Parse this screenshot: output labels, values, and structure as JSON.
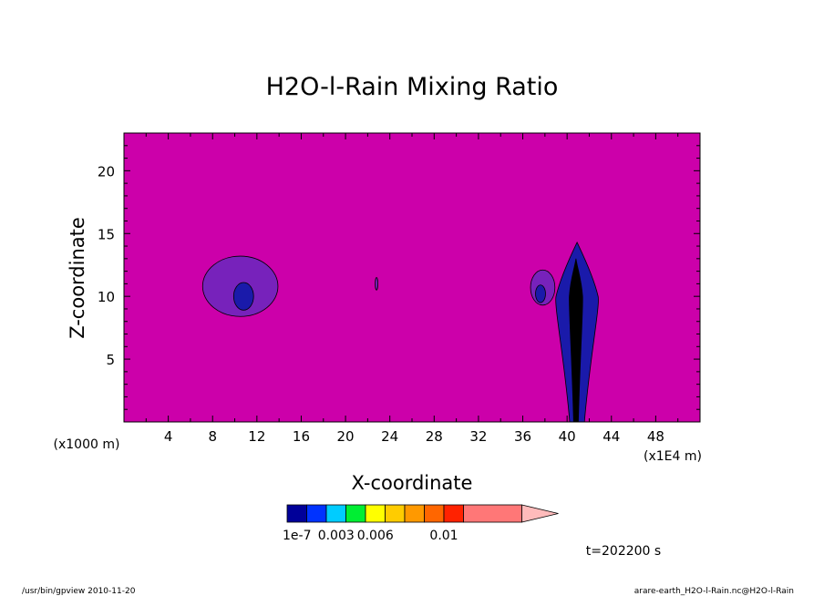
{
  "chart_data": {
    "type": "heatmap",
    "title": "H2O-l-Rain Mixing Ratio",
    "xlabel": "X-coordinate",
    "ylabel": "Z-coordinate",
    "x_unit": "(x1E4 m)",
    "y_unit": "(x1000 m)",
    "xlim": [
      0,
      52
    ],
    "ylim": [
      0,
      23
    ],
    "x_ticks": [
      4,
      8,
      12,
      16,
      20,
      24,
      28,
      32,
      36,
      40,
      44,
      48
    ],
    "y_ticks": [
      5,
      10,
      15,
      20
    ],
    "x_tick_labels": [
      "4",
      "8",
      "12",
      "16",
      "20",
      "24",
      "28",
      "32",
      "36",
      "40",
      "44",
      "48"
    ],
    "y_tick_labels": [
      "5",
      "10",
      "15",
      "20"
    ],
    "background_color": "#cc00aa",
    "colorbar": {
      "colors": [
        "#000099",
        "#0033ff",
        "#00ccff",
        "#00ee33",
        "#ffff00",
        "#ffcc00",
        "#ff9900",
        "#ff6600",
        "#ff2200",
        "#ff7777",
        "#ffbbbb"
      ],
      "labels": [
        "1e-7",
        "0.003",
        "0.006",
        "0.01"
      ],
      "label_positions": [
        0,
        2,
        4,
        7
      ]
    },
    "features": [
      {
        "kind": "blob",
        "x": 10.5,
        "z": 10.8,
        "rx": 3.4,
        "rz": 2.4,
        "color": "#7722bb"
      },
      {
        "kind": "blob",
        "x": 10.8,
        "z": 10.0,
        "rx": 0.9,
        "rz": 1.1,
        "color": "#1a1aaa"
      },
      {
        "kind": "blob",
        "x": 22.8,
        "z": 11.0,
        "rx": 0.12,
        "rz": 0.5,
        "color": "#7722bb"
      },
      {
        "kind": "blob",
        "x": 37.8,
        "z": 10.7,
        "rx": 1.1,
        "rz": 1.4,
        "color": "#7722bb"
      },
      {
        "kind": "blob",
        "x": 37.6,
        "z": 10.2,
        "rx": 0.45,
        "rz": 0.7,
        "color": "#1a1aaa"
      },
      {
        "kind": "column",
        "x": 40.9,
        "z_top": 14.3,
        "half_width": 1.9,
        "color": "#1a1aaa"
      },
      {
        "kind": "column",
        "x": 40.8,
        "z_top": 13.0,
        "half_width": 0.6,
        "color": "#000000"
      }
    ]
  },
  "time_label": "t=202200 s",
  "footer_left": "/usr/bin/gpview   2010-11-20",
  "footer_right": "arare-earth_H2O-l-Rain.nc@H2O-l-Rain"
}
